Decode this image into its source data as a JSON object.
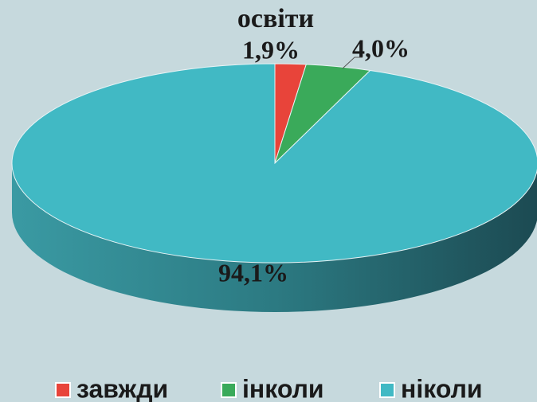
{
  "chart_data": {
    "type": "pie",
    "title": "освіти",
    "categories": [
      "завжди",
      "інколи",
      "ніколи"
    ],
    "values": [
      1.9,
      4.0,
      94.1
    ],
    "value_labels": [
      "1,9%",
      "4,0%",
      "94,1%"
    ],
    "colors": [
      "#e8443a",
      "#3aaa5a",
      "#41b9c4"
    ],
    "legend": "bottom"
  }
}
